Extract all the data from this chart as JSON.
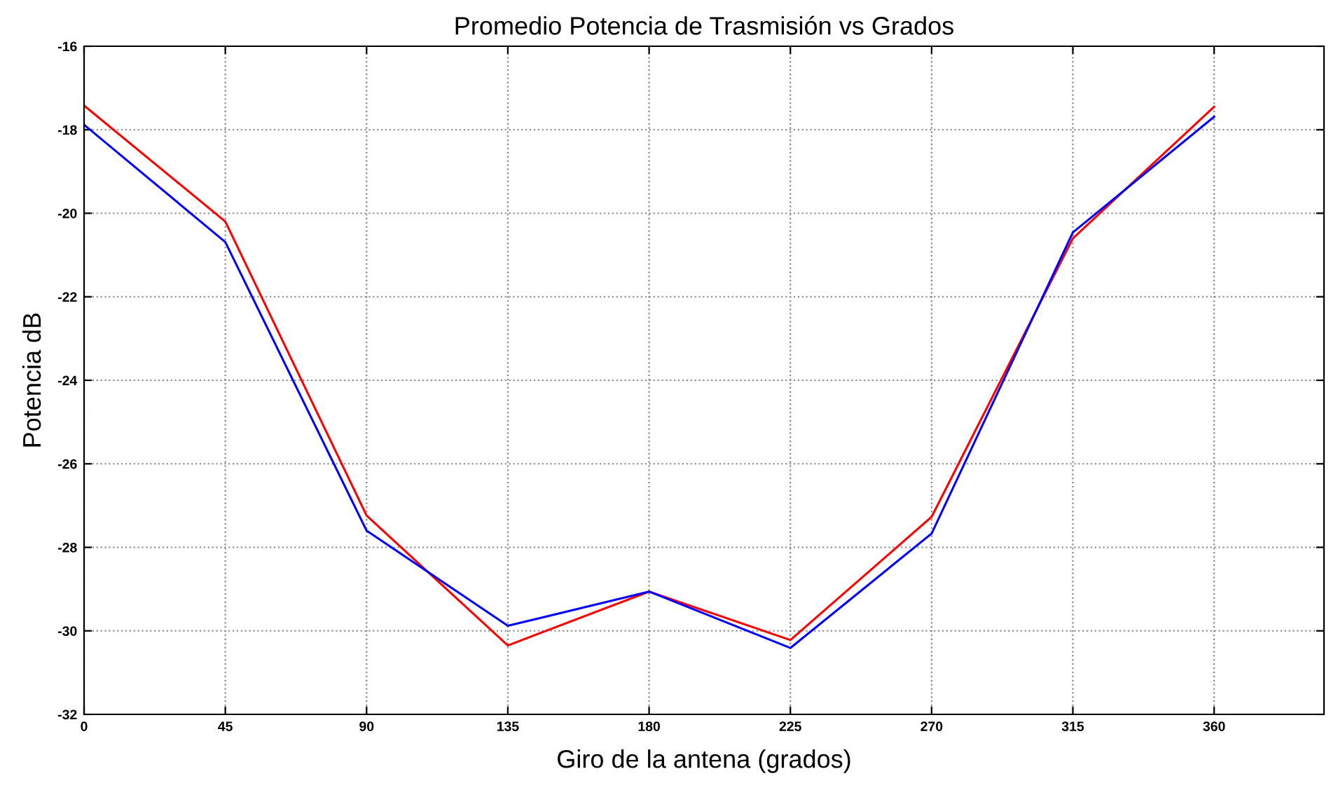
{
  "chart_data": {
    "type": "line",
    "title": "Promedio Potencia de Trasmisión vs Grados",
    "xlabel": "Giro de la antena (grados)",
    "ylabel": "Potencia dB",
    "x": [
      0,
      45,
      90,
      135,
      180,
      225,
      270,
      315,
      360
    ],
    "series": [
      {
        "color": "#ff0000",
        "values": [
          -17.42,
          -20.2,
          -27.24,
          -30.35,
          -29.06,
          -30.22,
          -27.27,
          -20.6,
          -17.45
        ]
      },
      {
        "color": "#0000ff",
        "values": [
          -17.88,
          -20.69,
          -27.6,
          -29.88,
          -29.06,
          -30.41,
          -27.67,
          -20.46,
          -17.69
        ]
      }
    ],
    "xlim": [
      0,
      395
    ],
    "xticks": [
      0,
      45,
      90,
      135,
      180,
      225,
      270,
      315,
      360
    ],
    "ylim": [
      -32,
      -16
    ],
    "yticks": [
      -32,
      -30,
      -28,
      -26,
      -24,
      -22,
      -20,
      -18,
      -16
    ],
    "grid": true,
    "line_style": "solid",
    "marker": "none"
  }
}
